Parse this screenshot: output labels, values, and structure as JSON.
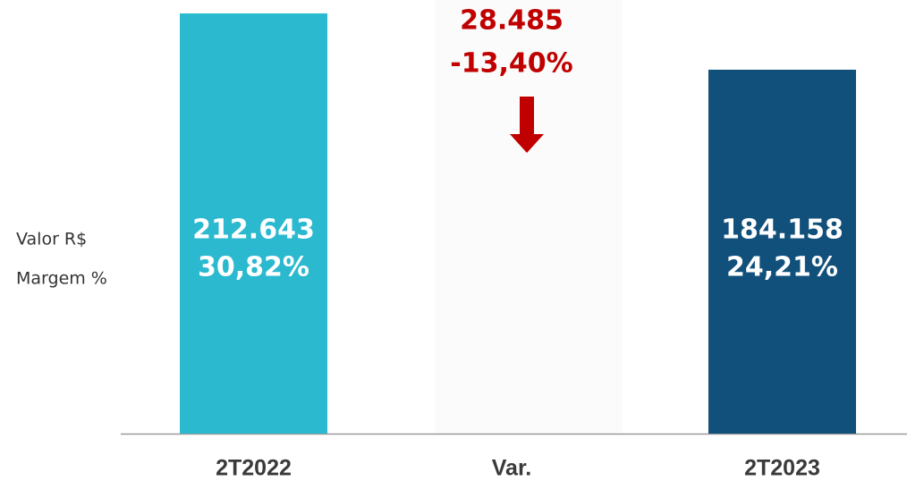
{
  "chart_data": {
    "type": "bar",
    "categories": [
      "2T2022",
      "Var.",
      "2T2023"
    ],
    "values": [
      212643,
      null,
      184158
    ],
    "value_labels": [
      "212.643",
      null,
      "184.158"
    ],
    "margins": [
      30.82,
      null,
      24.21
    ],
    "margin_labels": [
      "30,82%",
      null,
      "24,21%"
    ],
    "colors": [
      "#2bb9cf",
      null,
      "#12507c"
    ],
    "variation": {
      "value": 28485,
      "label": "28.485",
      "percent": -13.4,
      "percent_label": "-13,40%",
      "color": "#c00000"
    },
    "row_labels": [
      "Valor R$",
      "Margem %"
    ]
  }
}
